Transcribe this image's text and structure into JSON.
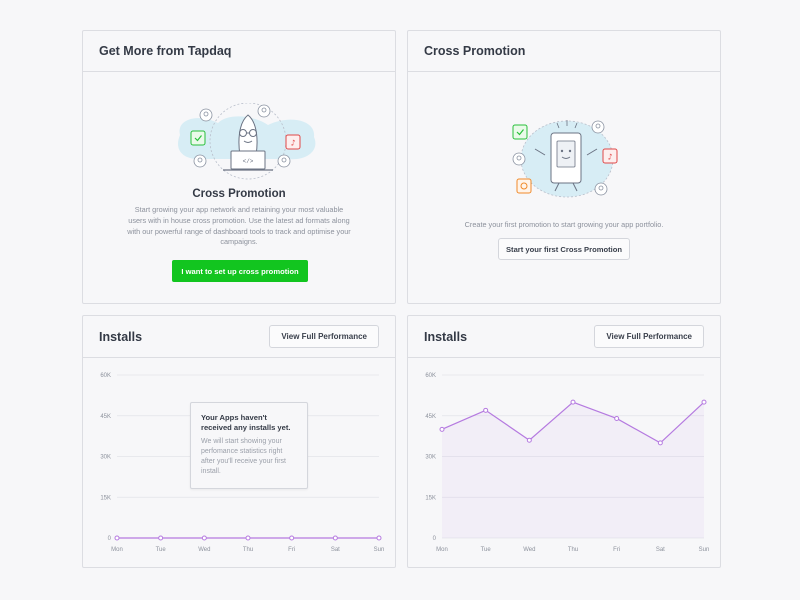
{
  "cards": {
    "get_more": {
      "title": "Get More from Tapdaq",
      "promo_title": "Cross Promotion",
      "promo_text": "Start growing your app network and retaining your most valuable users with in house cross promotion. Use the latest ad formats along with our powerful range of dashboard tools to track and optimise your campaigns.",
      "cta_label": "I want to set up cross promotion"
    },
    "cross_promo": {
      "title": "Cross Promotion",
      "text": "Create your first promotion to start growing your app portfolio.",
      "cta_label": "Start your first Cross Promotion"
    },
    "installs_empty": {
      "title": "Installs",
      "button_label": "View Full Performance",
      "empty_title": "Your Apps haven't received any installs yet.",
      "empty_body": "We will start showing your perfomance statistics right after you'll receive your first install."
    },
    "installs_data": {
      "title": "Installs",
      "button_label": "View Full Performance"
    }
  },
  "chart_data": [
    {
      "type": "line",
      "categories": [
        "Mon",
        "Tue",
        "Wed",
        "Thu",
        "Fri",
        "Sat",
        "Sun"
      ],
      "y_ticks": [
        "60K",
        "45K",
        "30K",
        "15K",
        "0"
      ],
      "ylim": [
        0,
        60000
      ],
      "series": [
        {
          "values": [
            0,
            0,
            0,
            0,
            0,
            0,
            0
          ]
        }
      ],
      "grid": true,
      "color": "#b57ae0"
    },
    {
      "type": "area",
      "categories": [
        "Mon",
        "Tue",
        "Wed",
        "Thu",
        "Fri",
        "Sat",
        "Sun"
      ],
      "y_ticks": [
        "60K",
        "45K",
        "30K",
        "15K",
        "0"
      ],
      "ylim": [
        0,
        60000
      ],
      "series": [
        {
          "values": [
            40000,
            47000,
            36000,
            50000,
            44000,
            35000,
            50000
          ]
        }
      ],
      "grid": true,
      "color": "#b57ae0"
    }
  ],
  "colors": {
    "accent": "#b57ae0",
    "green": "#12c51f",
    "border": "#dcdde2",
    "text_muted": "#8c919c"
  }
}
